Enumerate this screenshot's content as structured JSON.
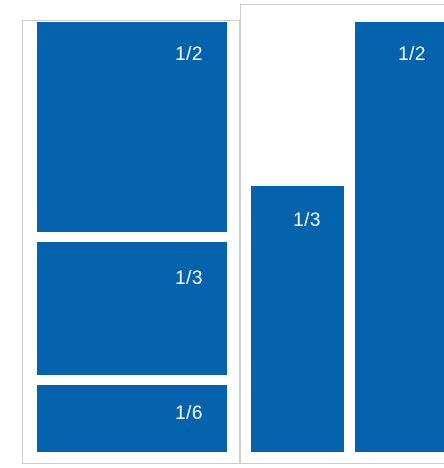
{
  "accent_color": "#0563ae",
  "blocks": {
    "left_half": {
      "label": "1/2",
      "fraction": 0.5
    },
    "left_third": {
      "label": "1/3",
      "fraction": 0.3333
    },
    "left_sixth": {
      "label": "1/6",
      "fraction": 0.1667
    },
    "right_third": {
      "label": "1/3",
      "fraction": 0.3333
    },
    "right_half": {
      "label": "1/2",
      "fraction": 0.5
    }
  }
}
